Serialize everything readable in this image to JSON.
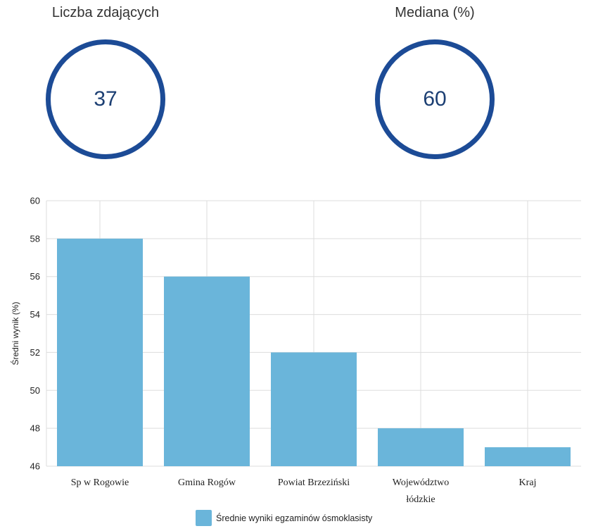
{
  "stats": {
    "left": {
      "label": "Liczba zdających",
      "value": "37"
    },
    "right": {
      "label": "Mediana (%)",
      "value": "60"
    }
  },
  "colors": {
    "ring": "#1c4b96",
    "bar": "#6ab5da",
    "grid": "#dddddd"
  },
  "chart_data": {
    "type": "bar",
    "categories": [
      "Sp w Rogowie",
      "Gmina Rogów",
      "Powiat Brzeziński",
      "Województwo łódzkie",
      "Kraj"
    ],
    "category_lines": [
      [
        "Sp w Rogowie"
      ],
      [
        "Gmina Rogów"
      ],
      [
        "Powiat Brzeziński"
      ],
      [
        "Województwo",
        "łódzkie"
      ],
      [
        "Kraj"
      ]
    ],
    "series": [
      {
        "name": "Średnie wyniki egzaminów ósmoklasisty",
        "values": [
          58,
          56,
          52,
          48,
          47
        ]
      }
    ],
    "xlabel": "",
    "ylabel": "Średni wynik (%)",
    "ylim": [
      46,
      60
    ],
    "yticks": [
      46,
      48,
      50,
      52,
      54,
      56,
      58,
      60
    ],
    "grid": true,
    "legend_position": "bottom"
  }
}
